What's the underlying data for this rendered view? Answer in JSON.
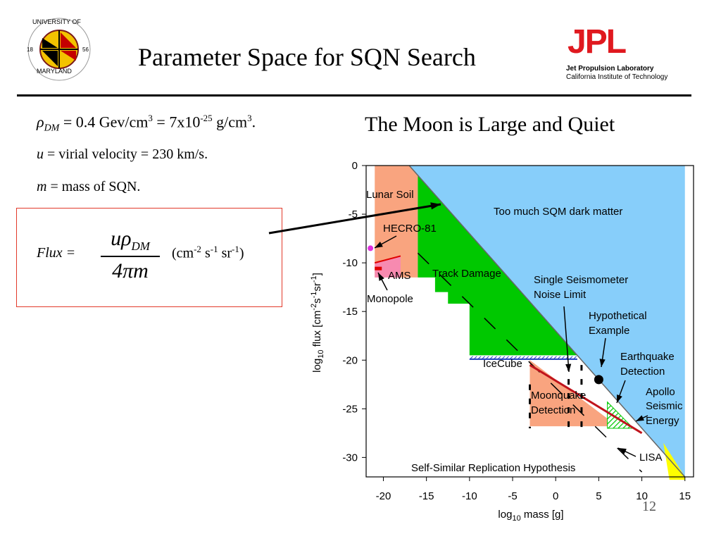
{
  "slide": {
    "title": "Parameter Space for SQN Search",
    "page_number": "12",
    "right_heading": "The Moon is Large and Quiet"
  },
  "equations": {
    "rho_symbol": "ρ",
    "rho_sub": "DM",
    "rho_text": " = 0.4 Gev/cm",
    "rho_sup1": "3",
    "rho_mid": " = 7x10",
    "rho_sup2": "-25",
    "rho_end": " g/cm",
    "rho_sup3": "3",
    "rho_period": ".",
    "u_sym": "u",
    "u_text": " = virial velocity = 230 km/s.",
    "m_sym": "m",
    "m_text": " = mass of SQN.",
    "flux_label": "Flux =",
    "frac_num": "uρ",
    "frac_num_sub": "DM",
    "frac_den": "4πm",
    "units_open": "(cm",
    "units_sup1": "-2",
    "units_s": " s",
    "units_sup2": "-1",
    "units_sr": " sr",
    "units_sup3": "-1",
    "units_close": ")"
  },
  "logos": {
    "umd_top": "UNIVERSITY OF",
    "umd_bottom": "MARYLAND",
    "umd_left": "18",
    "umd_right": "56",
    "jpl_mark": "JPL",
    "jpl_line1": "Jet Propulsion Laboratory",
    "jpl_line2": "California Institute of Technology"
  },
  "chart_data": {
    "type": "area",
    "xlabel_main": "log",
    "xlabel_sub": "10",
    "xlabel_rest": " mass [g]",
    "ylabel_main": "log",
    "ylabel_sub": "10",
    "ylabel_rest": " flux [cm",
    "ylabel_sup1": "-2",
    "ylabel_s": "s",
    "ylabel_sup2": "-1",
    "ylabel_sr": "sr",
    "ylabel_sup3": "-1",
    "ylabel_close": "]",
    "xlim": [
      -22,
      16
    ],
    "ylim": [
      -32,
      0
    ],
    "x_ticks": [
      -20,
      -15,
      -10,
      -5,
      0,
      5,
      10,
      15
    ],
    "y_ticks": [
      0,
      -5,
      -10,
      -15,
      -20,
      -25,
      -30
    ],
    "regions": [
      {
        "name": "Too much SQM dark matter",
        "color": "#87cefa",
        "points": [
          [
            -17,
            0
          ],
          [
            15,
            0
          ],
          [
            15,
            -32
          ],
          [
            -17,
            0
          ]
        ]
      },
      {
        "name": "Lunar Soil",
        "color": "#f9a47f",
        "points": [
          [
            -21,
            0
          ],
          [
            -17,
            0
          ],
          [
            -16,
            -1
          ],
          [
            -16,
            -11.5
          ],
          [
            -21,
            -11.5
          ]
        ]
      },
      {
        "name": "Track Damage",
        "color": "#00c800",
        "points": [
          [
            -16,
            -1
          ],
          [
            2.5,
            -19.5
          ],
          [
            -10,
            -19.5
          ],
          [
            -10,
            -14.2
          ],
          [
            -12.5,
            -14.2
          ],
          [
            -12.5,
            -13
          ],
          [
            -14,
            -13
          ],
          [
            -14,
            -11.5
          ],
          [
            -16,
            -11.5
          ]
        ]
      },
      {
        "name": "AMS",
        "color": "#f78ab0",
        "points": [
          [
            -21,
            -10
          ],
          [
            -18,
            -9.3
          ],
          [
            -18,
            -11.5
          ],
          [
            -21,
            -11.5
          ]
        ]
      },
      {
        "name": "Moonquake Detection",
        "color": "#f9a47f",
        "points": [
          [
            -3,
            -20
          ],
          [
            6,
            -26
          ],
          [
            6,
            -26.8
          ],
          [
            -3,
            -26.8
          ]
        ]
      }
    ],
    "labels": {
      "too_much": "Too much SQM dark matter",
      "lunar_soil": "Lunar Soil",
      "hecro": "HECRO-81",
      "track": "Track Damage",
      "ams": "AMS",
      "monopole": "Monopole",
      "ssnl_1": "Single Seismometer",
      "ssnl_2": "Noise Limit",
      "hypo_1": "Hypothetical",
      "hypo_2": "Example",
      "eq_1": "Earthquake",
      "eq_2": "Detection",
      "apollo_1": "Apollo",
      "apollo_2": "Seismic",
      "apollo_3": "Energy",
      "icecube": "IceCube",
      "moonquake_1": "Moonquake",
      "moonquake_2": "Detection",
      "lisa": "LISA",
      "ssrh": "Self-Similar Replication Hypothesis"
    },
    "hypothetical_point": [
      5,
      -22
    ],
    "hecro_point": [
      -21.5,
      -8.5
    ],
    "colors": {
      "blue": "#87cefa",
      "green": "#00c800",
      "salmon": "#f9a47f",
      "pink": "#f78ab0",
      "yellow": "#ffff00",
      "red": "#c0141c",
      "magenta": "#e02de0"
    }
  }
}
